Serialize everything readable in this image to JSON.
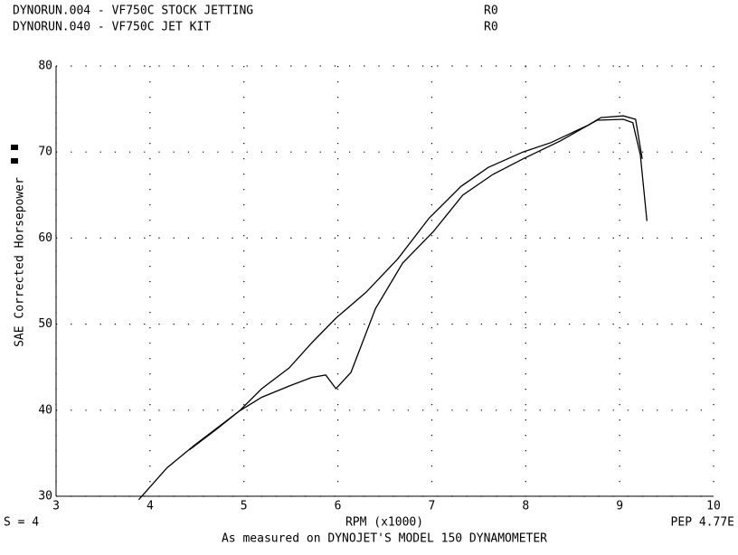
{
  "chart_data": {
    "type": "line",
    "series": [
      {
        "name": "DYNORUN.004 - VF750C STOCK JETTING",
        "run": "R0",
        "color": "#000000",
        "x": [
          3.88,
          4.18,
          4.47,
          4.95,
          5.19,
          5.48,
          5.72,
          5.98,
          6.3,
          6.64,
          6.97,
          7.31,
          7.6,
          7.97,
          8.27,
          8.66,
          8.8,
          9.04,
          9.17,
          9.24
        ],
        "values": [
          29.6,
          33.3,
          35.9,
          39.9,
          42.5,
          44.9,
          47.8,
          50.7,
          53.7,
          57.6,
          62.3,
          66.0,
          68.2,
          70.0,
          71.1,
          73.1,
          74.0,
          74.2,
          73.8,
          69.2
        ]
      },
      {
        "name": "DYNORUN.040 - VF750C JET KIT",
        "run": "R0",
        "color": "#000000",
        "x": [
          4.42,
          4.71,
          4.95,
          5.19,
          5.48,
          5.72,
          5.87,
          5.98,
          6.14,
          6.4,
          6.69,
          7.02,
          7.33,
          7.65,
          7.97,
          8.37,
          8.76,
          9.04,
          9.14,
          9.22,
          9.29
        ],
        "values": [
          35.4,
          37.8,
          39.9,
          41.5,
          42.8,
          43.8,
          44.1,
          42.5,
          44.4,
          51.8,
          57.1,
          60.8,
          65.0,
          67.4,
          69.2,
          71.3,
          73.7,
          73.8,
          73.4,
          69.7,
          62.0
        ]
      }
    ],
    "x_label": "RPM (x1000)",
    "y_label": "SAE Corrected Horsepower",
    "footer_left": "S = 4",
    "footer_right": "PEP 4.77E",
    "footnote": "As measured on DYNOJET'S MODEL 150 DYNAMOMETER",
    "xlim": [
      3,
      10
    ],
    "xticks": [
      3,
      4,
      5,
      6,
      7,
      8,
      9,
      10
    ],
    "ylim": [
      30,
      80
    ],
    "yticks": [
      30,
      40,
      50,
      60,
      70,
      80
    ],
    "grid": true
  }
}
